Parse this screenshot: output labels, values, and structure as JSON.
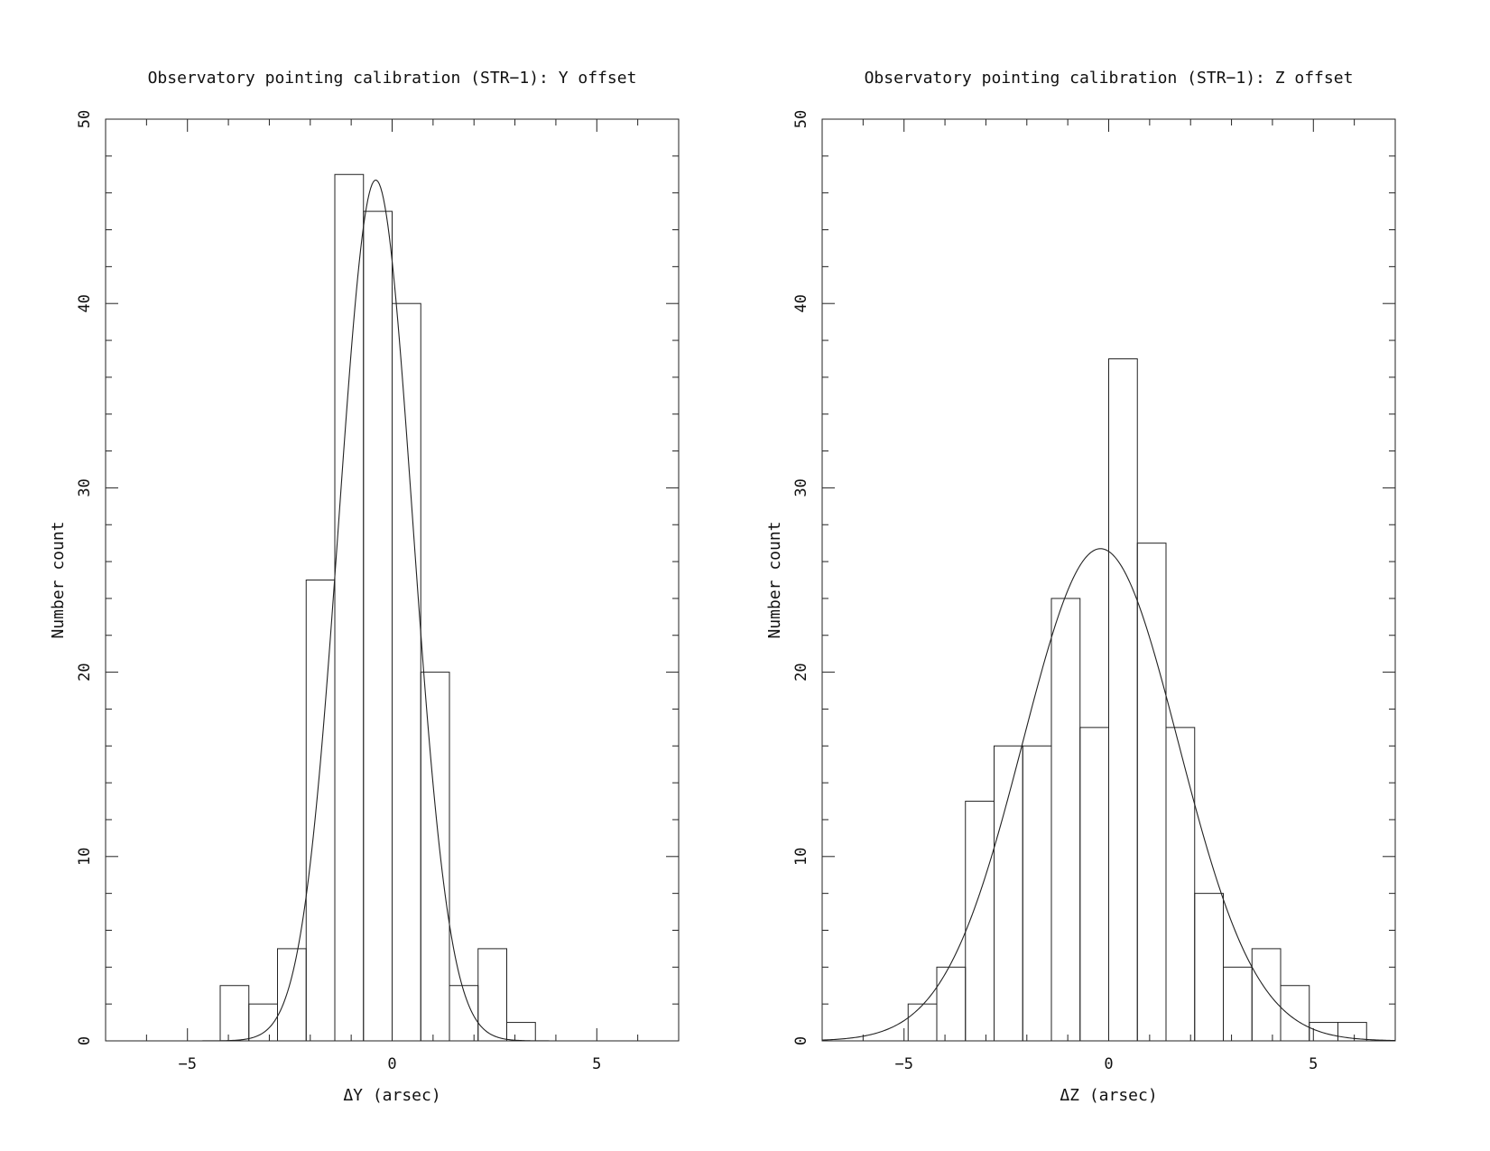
{
  "chart_data": [
    {
      "type": "bar",
      "title": "Observatory pointing calibration (STR−1): Y offset",
      "xlabel": "ΔY (arsec)",
      "ylabel": "Number count",
      "xlim": [
        -7,
        7
      ],
      "ylim": [
        0,
        50
      ],
      "x_ticks": [
        -5,
        0,
        5
      ],
      "x_tick_labels": [
        "−5",
        "0",
        "5"
      ],
      "y_ticks": [
        0,
        10,
        20,
        30,
        40,
        50
      ],
      "y_tick_labels": [
        "0",
        "10",
        "20",
        "30",
        "40",
        "50"
      ],
      "bin_width": 0.7,
      "bins": [
        {
          "x0": -4.2,
          "x1": -3.5,
          "count": 3
        },
        {
          "x0": -3.5,
          "x1": -2.8,
          "count": 2
        },
        {
          "x0": -2.8,
          "x1": -2.1,
          "count": 5
        },
        {
          "x0": -2.1,
          "x1": -1.4,
          "count": 25
        },
        {
          "x0": -1.4,
          "x1": -0.7,
          "count": 47
        },
        {
          "x0": -0.7,
          "x1": 0.0,
          "count": 45
        },
        {
          "x0": 0.0,
          "x1": 0.7,
          "count": 40
        },
        {
          "x0": 0.7,
          "x1": 1.4,
          "count": 20
        },
        {
          "x0": 1.4,
          "x1": 2.1,
          "count": 3
        },
        {
          "x0": 2.1,
          "x1": 2.8,
          "count": 5
        },
        {
          "x0": 2.8,
          "x1": 3.5,
          "count": 1
        }
      ],
      "fit": {
        "type": "gaussian",
        "amplitude": 46.7,
        "mean": -0.4,
        "sigma": 0.9
      },
      "grid": false,
      "legend": "none"
    },
    {
      "type": "bar",
      "title": "Observatory pointing calibration (STR−1): Z offset",
      "xlabel": "ΔZ (arsec)",
      "ylabel": "Number count",
      "xlim": [
        -7,
        7
      ],
      "ylim": [
        0,
        50
      ],
      "x_ticks": [
        -5,
        0,
        5
      ],
      "x_tick_labels": [
        "−5",
        "0",
        "5"
      ],
      "y_ticks": [
        0,
        10,
        20,
        30,
        40,
        50
      ],
      "y_tick_labels": [
        "0",
        "10",
        "20",
        "30",
        "40",
        "50"
      ],
      "bin_width": 0.7,
      "bins": [
        {
          "x0": -4.9,
          "x1": -4.2,
          "count": 2
        },
        {
          "x0": -4.2,
          "x1": -3.5,
          "count": 4
        },
        {
          "x0": -3.5,
          "x1": -2.8,
          "count": 13
        },
        {
          "x0": -2.8,
          "x1": -2.1,
          "count": 16
        },
        {
          "x0": -2.1,
          "x1": -1.4,
          "count": 16
        },
        {
          "x0": -1.4,
          "x1": -0.7,
          "count": 24
        },
        {
          "x0": -0.7,
          "x1": 0.0,
          "count": 17
        },
        {
          "x0": 0.0,
          "x1": 0.7,
          "count": 37
        },
        {
          "x0": 0.7,
          "x1": 1.4,
          "count": 27
        },
        {
          "x0": 1.4,
          "x1": 2.1,
          "count": 17
        },
        {
          "x0": 2.1,
          "x1": 2.8,
          "count": 8
        },
        {
          "x0": 2.8,
          "x1": 3.5,
          "count": 4
        },
        {
          "x0": 3.5,
          "x1": 4.2,
          "count": 5
        },
        {
          "x0": 4.2,
          "x1": 4.9,
          "count": 3
        },
        {
          "x0": 4.9,
          "x1": 5.6,
          "count": 1
        },
        {
          "x0": 5.6,
          "x1": 6.3,
          "count": 1
        }
      ],
      "fit": {
        "type": "gaussian",
        "amplitude": 26.7,
        "mean": -0.2,
        "sigma": 1.9
      },
      "grid": false,
      "legend": "none"
    }
  ]
}
